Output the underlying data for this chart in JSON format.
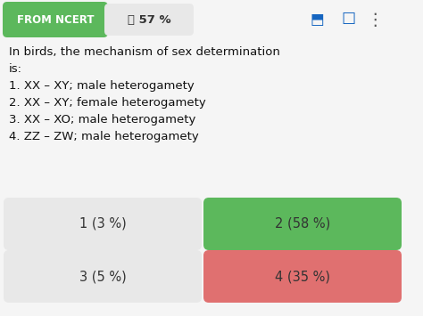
{
  "bg_color": "#f5f5f5",
  "header_bg": "#5cb85c",
  "header_text": "FROM NCERT",
  "header_text_color": "#ffffff",
  "like_text": "👍 57 %",
  "like_bg": "#e8e8e8",
  "question_lines": [
    "In birds, the mechanism of sex determination",
    "is:",
    "1. XX – XY; male heterogamety",
    "2. XX – XY; female heterogamety",
    "3. XX – XO; male heterogamety",
    "4. ZZ – ZW; male heterogamety"
  ],
  "options": [
    {
      "label": "1 (3 %)",
      "color": "#e8e8e8",
      "text_color": "#333333"
    },
    {
      "label": "2 (58 %)",
      "color": "#5cb85c",
      "text_color": "#333333"
    },
    {
      "label": "3 (5 %)",
      "color": "#e8e8e8",
      "text_color": "#333333"
    },
    {
      "label": "4 (35 %)",
      "color": "#e07070",
      "text_color": "#333333"
    }
  ],
  "icon_color": "#1565c0",
  "text_fontsize": 9.5,
  "option_fontsize": 10.5,
  "header_fontsize": 8.5,
  "like_fontsize": 9.5
}
